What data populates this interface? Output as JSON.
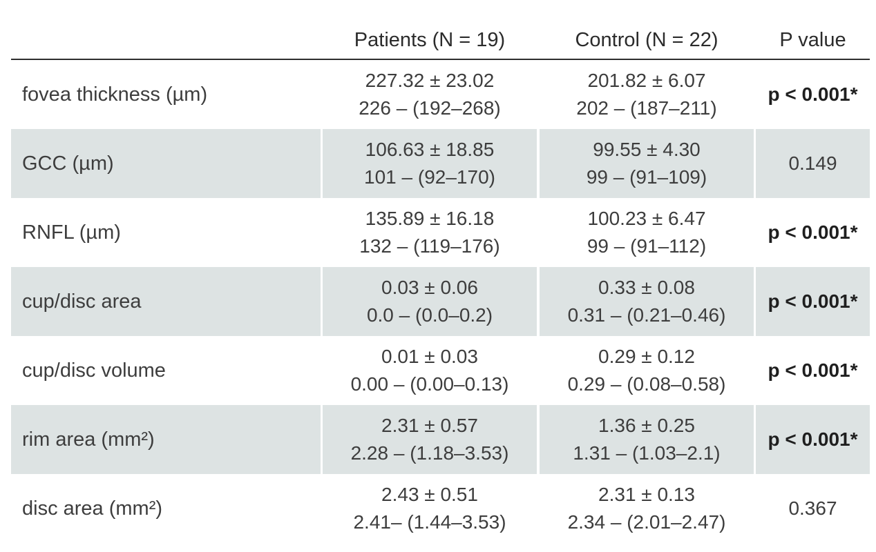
{
  "header": {
    "col_label": "",
    "col_patients": "Patients (N = 19)",
    "col_control": "Control (N = 22)",
    "col_p": "P value"
  },
  "rows": [
    {
      "label": "fovea thickness (µm)",
      "patients_mean": "227.32 ± 23.02",
      "patients_range": "226 – (192–268)",
      "control_mean": "201.82 ± 6.07",
      "control_range": "202 – (187–211)",
      "p": "p < 0.001*",
      "significant": true,
      "shaded": false
    },
    {
      "label": "GCC (µm)",
      "patients_mean": "106.63 ± 18.85",
      "patients_range": "101 – (92–170)",
      "control_mean": "99.55 ± 4.30",
      "control_range": "99 – (91–109)",
      "p": "0.149",
      "significant": false,
      "shaded": true
    },
    {
      "label": "RNFL (µm)",
      "patients_mean": "135.89 ± 16.18",
      "patients_range": "132 – (119–176)",
      "control_mean": "100.23 ± 6.47",
      "control_range": "99 – (91–112)",
      "p": "p < 0.001*",
      "significant": true,
      "shaded": false
    },
    {
      "label": "cup/disc area",
      "patients_mean": "0.03 ± 0.06",
      "patients_range": "0.0 – (0.0–0.2)",
      "control_mean": "0.33 ± 0.08",
      "control_range": "0.31 – (0.21–0.46)",
      "p": "p < 0.001*",
      "significant": true,
      "shaded": true
    },
    {
      "label": "cup/disc volume",
      "patients_mean": "0.01 ± 0.03",
      "patients_range": "0.00 – (0.00–0.13)",
      "control_mean": "0.29 ± 0.12",
      "control_range": "0.29 – (0.08–0.58)",
      "p": "p < 0.001*",
      "significant": true,
      "shaded": false
    },
    {
      "label": "rim area (mm²)",
      "patients_mean": "2.31 ± 0.57",
      "patients_range": "2.28 – (1.18–3.53)",
      "control_mean": "1.36 ± 0.25",
      "control_range": "1.31 – (1.03–2.1)",
      "p": "p < 0.001*",
      "significant": true,
      "shaded": true
    },
    {
      "label": "disc area (mm²)",
      "patients_mean": "2.43 ± 0.51",
      "patients_range": "2.41– (1.44–3.53)",
      "control_mean": "2.31 ± 0.13",
      "control_range": "2.34 – (2.01–2.47)",
      "p": "0.367",
      "significant": false,
      "shaded": false
    }
  ],
  "colors": {
    "shade": "#dde3e3",
    "rule": "#2e2e2e",
    "text": "#3d3d3d"
  }
}
